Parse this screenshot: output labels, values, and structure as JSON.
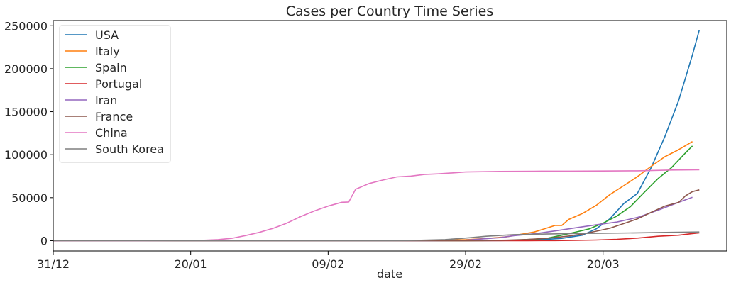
{
  "chart_data": {
    "type": "line",
    "title": "Cases per Country Time Series",
    "xlabel": "date",
    "ylabel": "",
    "x_start": "2019-12-31",
    "x_end": "2020-04-07",
    "x_ticks": [
      {
        "date": "2019-12-31",
        "label": "31/12"
      },
      {
        "date": "2020-01-20",
        "label": "20/01"
      },
      {
        "date": "2020-02-09",
        "label": "09/02"
      },
      {
        "date": "2020-02-29",
        "label": "29/02"
      },
      {
        "date": "2020-03-20",
        "label": "20/03"
      }
    ],
    "ylim": [
      -12000,
      256000
    ],
    "y_ticks": [
      {
        "value": 0,
        "label": "0"
      },
      {
        "value": 50000,
        "label": "50000"
      },
      {
        "value": 100000,
        "label": "100000"
      },
      {
        "value": 150000,
        "label": "150000"
      },
      {
        "value": 200000,
        "label": "200000"
      },
      {
        "value": 250000,
        "label": "250000"
      }
    ],
    "grid": false,
    "legend_position": "upper-left",
    "series": [
      {
        "name": "USA",
        "color": "#1f77b4",
        "points": [
          [
            "2019-12-31",
            0
          ],
          [
            "2020-01-20",
            1
          ],
          [
            "2020-02-09",
            11
          ],
          [
            "2020-02-29",
            70
          ],
          [
            "2020-03-05",
            150
          ],
          [
            "2020-03-10",
            700
          ],
          [
            "2020-03-14",
            2700
          ],
          [
            "2020-03-17",
            6400
          ],
          [
            "2020-03-19",
            13700
          ],
          [
            "2020-03-21",
            25500
          ],
          [
            "2020-03-23",
            43000
          ],
          [
            "2020-03-25",
            55000
          ],
          [
            "2020-03-27",
            85000
          ],
          [
            "2020-03-29",
            121000
          ],
          [
            "2020-03-31",
            163000
          ],
          [
            "2020-04-02",
            216000
          ],
          [
            "2020-04-03",
            245000
          ]
        ]
      },
      {
        "name": "Italy",
        "color": "#ff7f0e",
        "points": [
          [
            "2019-12-31",
            0
          ],
          [
            "2020-01-30",
            0
          ],
          [
            "2020-02-20",
            3
          ],
          [
            "2020-02-24",
            230
          ],
          [
            "2020-02-29",
            1100
          ],
          [
            "2020-03-03",
            2500
          ],
          [
            "2020-03-06",
            4600
          ],
          [
            "2020-03-08",
            7400
          ],
          [
            "2020-03-10",
            10100
          ],
          [
            "2020-03-12",
            15100
          ],
          [
            "2020-03-13",
            17700
          ],
          [
            "2020-03-14",
            17700
          ],
          [
            "2020-03-15",
            24700
          ],
          [
            "2020-03-17",
            31500
          ],
          [
            "2020-03-19",
            41000
          ],
          [
            "2020-03-21",
            53600
          ],
          [
            "2020-03-23",
            63900
          ],
          [
            "2020-03-25",
            74400
          ],
          [
            "2020-03-27",
            86500
          ],
          [
            "2020-03-29",
            97700
          ],
          [
            "2020-03-31",
            105800
          ],
          [
            "2020-04-02",
            115200
          ]
        ]
      },
      {
        "name": "Spain",
        "color": "#2ca02c",
        "points": [
          [
            "2019-12-31",
            0
          ],
          [
            "2020-02-25",
            2
          ],
          [
            "2020-02-29",
            45
          ],
          [
            "2020-03-04",
            222
          ],
          [
            "2020-03-07",
            500
          ],
          [
            "2020-03-10",
            1700
          ],
          [
            "2020-03-12",
            3000
          ],
          [
            "2020-03-14",
            6400
          ],
          [
            "2020-03-16",
            9900
          ],
          [
            "2020-03-18",
            13700
          ],
          [
            "2020-03-20",
            20400
          ],
          [
            "2020-03-22",
            28600
          ],
          [
            "2020-03-24",
            39700
          ],
          [
            "2020-03-26",
            56200
          ],
          [
            "2020-03-28",
            72200
          ],
          [
            "2020-03-30",
            85200
          ],
          [
            "2020-04-01",
            102100
          ],
          [
            "2020-04-02",
            110200
          ]
        ]
      },
      {
        "name": "Portugal",
        "color": "#d62728",
        "points": [
          [
            "2019-12-31",
            0
          ],
          [
            "2020-03-02",
            2
          ],
          [
            "2020-03-09",
            39
          ],
          [
            "2020-03-13",
            112
          ],
          [
            "2020-03-16",
            331
          ],
          [
            "2020-03-19",
            785
          ],
          [
            "2020-03-22",
            1600
          ],
          [
            "2020-03-25",
            2995
          ],
          [
            "2020-03-28",
            5170
          ],
          [
            "2020-03-31",
            6408
          ],
          [
            "2020-04-02",
            8251
          ],
          [
            "2020-04-03",
            9034
          ]
        ]
      },
      {
        "name": "Iran",
        "color": "#9467bd",
        "points": [
          [
            "2019-12-31",
            0
          ],
          [
            "2020-02-19",
            2
          ],
          [
            "2020-02-24",
            61
          ],
          [
            "2020-02-27",
            245
          ],
          [
            "2020-02-29",
            593
          ],
          [
            "2020-03-03",
            2336
          ],
          [
            "2020-03-05",
            3513
          ],
          [
            "2020-03-07",
            5823
          ],
          [
            "2020-03-10",
            8042
          ],
          [
            "2020-03-13",
            11364
          ],
          [
            "2020-03-16",
            14991
          ],
          [
            "2020-03-19",
            18407
          ],
          [
            "2020-03-22",
            21638
          ],
          [
            "2020-03-25",
            27017
          ],
          [
            "2020-03-28",
            35408
          ],
          [
            "2020-03-31",
            44605
          ],
          [
            "2020-04-02",
            50468
          ]
        ]
      },
      {
        "name": "France",
        "color": "#8c564b",
        "points": [
          [
            "2019-12-31",
            0
          ],
          [
            "2020-01-25",
            3
          ],
          [
            "2020-02-25",
            14
          ],
          [
            "2020-02-29",
            100
          ],
          [
            "2020-03-03",
            212
          ],
          [
            "2020-03-06",
            613
          ],
          [
            "2020-03-09",
            1412
          ],
          [
            "2020-03-12",
            2876
          ],
          [
            "2020-03-15",
            5423
          ],
          [
            "2020-03-17",
            7730
          ],
          [
            "2020-03-19",
            10995
          ],
          [
            "2020-03-21",
            14459
          ],
          [
            "2020-03-23",
            19856
          ],
          [
            "2020-03-25",
            25233
          ],
          [
            "2020-03-27",
            32964
          ],
          [
            "2020-03-29",
            40174
          ],
          [
            "2020-03-31",
            44550
          ],
          [
            "2020-04-01",
            52128
          ],
          [
            "2020-04-02",
            56989
          ],
          [
            "2020-04-03",
            59105
          ]
        ]
      },
      {
        "name": "China",
        "color": "#e377c2",
        "points": [
          [
            "2019-12-31",
            27
          ],
          [
            "2020-01-13",
            41
          ],
          [
            "2020-01-18",
            200
          ],
          [
            "2020-01-20",
            291
          ],
          [
            "2020-01-22",
            571
          ],
          [
            "2020-01-24",
            1297
          ],
          [
            "2020-01-26",
            2744
          ],
          [
            "2020-01-28",
            5974
          ],
          [
            "2020-01-30",
            9692
          ],
          [
            "2020-02-01",
            14380
          ],
          [
            "2020-02-03",
            20438
          ],
          [
            "2020-02-05",
            28018
          ],
          [
            "2020-02-07",
            34598
          ],
          [
            "2020-02-09",
            40171
          ],
          [
            "2020-02-11",
            44653
          ],
          [
            "2020-02-12",
            45000
          ],
          [
            "2020-02-13",
            59804
          ],
          [
            "2020-02-15",
            66492
          ],
          [
            "2020-02-17",
            70548
          ],
          [
            "2020-02-19",
            74185
          ],
          [
            "2020-02-21",
            75077
          ],
          [
            "2020-02-23",
            76936
          ],
          [
            "2020-02-25",
            77754
          ],
          [
            "2020-02-29",
            79824
          ],
          [
            "2020-03-05",
            80552
          ],
          [
            "2020-03-10",
            80778
          ],
          [
            "2020-03-15",
            80860
          ],
          [
            "2020-03-20",
            81008
          ],
          [
            "2020-03-25",
            81285
          ],
          [
            "2020-03-30",
            82150
          ],
          [
            "2020-04-03",
            82511
          ]
        ]
      },
      {
        "name": "South Korea",
        "color": "#7f7f7f",
        "points": [
          [
            "2019-12-31",
            0
          ],
          [
            "2020-01-20",
            1
          ],
          [
            "2020-02-09",
            25
          ],
          [
            "2020-02-18",
            31
          ],
          [
            "2020-02-20",
            104
          ],
          [
            "2020-02-22",
            433
          ],
          [
            "2020-02-24",
            833
          ],
          [
            "2020-02-26",
            1261
          ],
          [
            "2020-02-28",
            2337
          ],
          [
            "2020-03-01",
            3736
          ],
          [
            "2020-03-03",
            5186
          ],
          [
            "2020-03-05",
            6088
          ],
          [
            "2020-03-07",
            7041
          ],
          [
            "2020-03-10",
            7513
          ],
          [
            "2020-03-15",
            8162
          ],
          [
            "2020-03-20",
            8652
          ],
          [
            "2020-03-25",
            9137
          ],
          [
            "2020-03-30",
            9661
          ],
          [
            "2020-04-03",
            10062
          ]
        ]
      }
    ]
  }
}
